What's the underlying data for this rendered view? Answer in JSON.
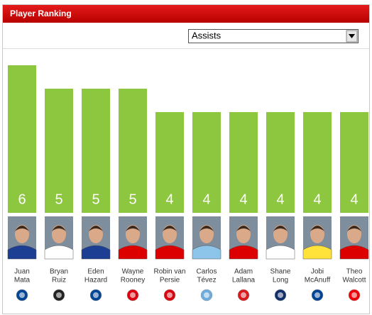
{
  "header": {
    "title": "Player Ranking"
  },
  "dropdown": {
    "selected": "Assists"
  },
  "chart_data": {
    "type": "bar",
    "categories": [
      [
        "Juan",
        "Mata"
      ],
      [
        "Bryan",
        "Ruiz"
      ],
      [
        "Eden",
        "Hazard"
      ],
      [
        "Wayne",
        "Rooney"
      ],
      [
        "Robin van",
        "Persie"
      ],
      [
        "Carlos",
        "Tévez"
      ],
      [
        "Adam",
        "Lallana"
      ],
      [
        "Shane",
        "Long"
      ],
      [
        "Jobi",
        "McAnuff"
      ],
      [
        "Theo",
        "Walcott"
      ]
    ],
    "values": [
      6,
      5,
      5,
      5,
      4,
      4,
      4,
      4,
      4,
      4
    ],
    "color": "#8dc63f"
  }
}
